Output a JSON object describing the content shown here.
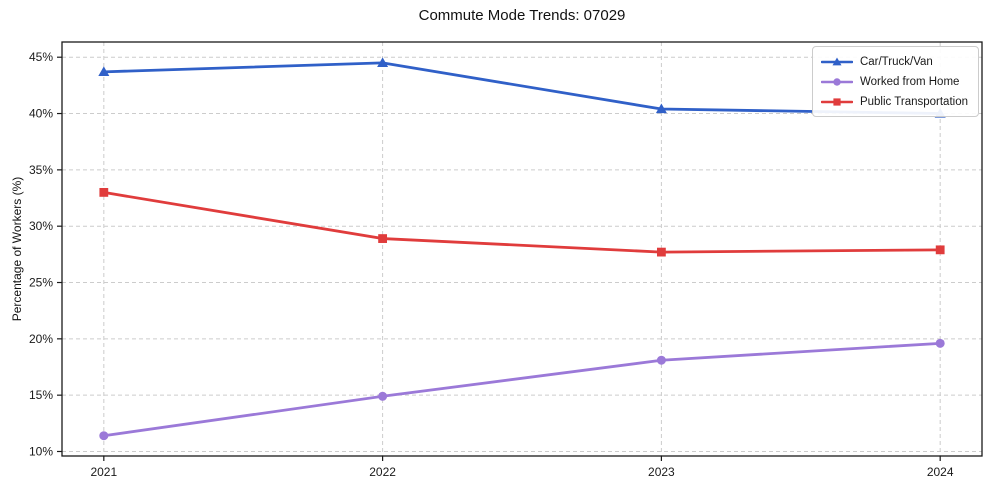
{
  "chart_data": {
    "type": "line",
    "title": "Commute Mode Trends: 07029",
    "xlabel": "",
    "ylabel": "Percentage of Workers (%)",
    "categories": [
      "2021",
      "2022",
      "2023",
      "2024"
    ],
    "series": [
      {
        "name": "Car/Truck/Van",
        "values": [
          43.7,
          44.5,
          40.4,
          40.0
        ],
        "color": "#3060c8",
        "marker": "triangle"
      },
      {
        "name": "Worked from Home",
        "values": [
          11.4,
          14.9,
          18.1,
          19.6
        ],
        "color": "#9b79d8",
        "marker": "circle"
      },
      {
        "name": "Public Transportation",
        "values": [
          33.0,
          28.9,
          27.7,
          27.9
        ],
        "color": "#e03c3c",
        "marker": "square"
      }
    ],
    "yticks": [
      10,
      15,
      20,
      25,
      30,
      35,
      40,
      45
    ],
    "ytick_suffix": "%",
    "ylim": [
      9.6,
      46.4
    ],
    "grid": true,
    "legend_position": "upper right"
  }
}
